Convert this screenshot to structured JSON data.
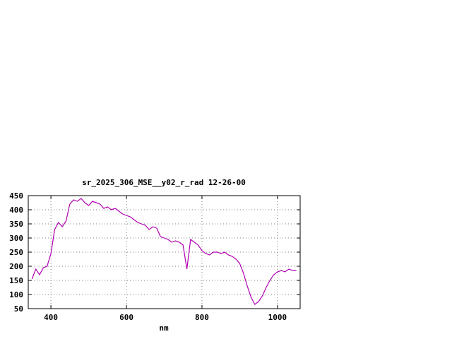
{
  "chart_data": {
    "type": "line",
    "title": "sr_2025_306_MSE__y02_r_rad 12-26-00",
    "xlabel": "nm",
    "ylabel": "",
    "xlim": [
      340,
      1060
    ],
    "ylim": [
      50,
      450
    ],
    "xticks": [
      400,
      600,
      800,
      1000
    ],
    "yticks": [
      50,
      100,
      150,
      200,
      250,
      300,
      350,
      400,
      450
    ],
    "grid": true,
    "legend": "none",
    "line_color": "#b000b0",
    "x": [
      350,
      360,
      370,
      380,
      390,
      400,
      410,
      420,
      430,
      440,
      450,
      460,
      470,
      480,
      490,
      500,
      510,
      520,
      530,
      540,
      550,
      560,
      570,
      580,
      590,
      600,
      610,
      620,
      630,
      640,
      650,
      660,
      670,
      680,
      690,
      700,
      710,
      720,
      730,
      740,
      750,
      760,
      770,
      780,
      790,
      800,
      810,
      820,
      830,
      840,
      850,
      860,
      870,
      880,
      890,
      900,
      910,
      920,
      930,
      940,
      950,
      960,
      970,
      980,
      990,
      1000,
      1010,
      1020,
      1030,
      1040,
      1050
    ],
    "values": [
      155,
      190,
      170,
      195,
      200,
      245,
      330,
      355,
      340,
      360,
      420,
      435,
      430,
      440,
      425,
      415,
      430,
      425,
      420,
      405,
      410,
      400,
      405,
      395,
      385,
      380,
      375,
      365,
      355,
      350,
      345,
      330,
      340,
      335,
      305,
      300,
      295,
      285,
      290,
      285,
      275,
      190,
      295,
      285,
      275,
      255,
      245,
      240,
      250,
      250,
      245,
      250,
      240,
      235,
      225,
      210,
      175,
      130,
      90,
      65,
      75,
      95,
      125,
      150,
      170,
      180,
      185,
      180,
      190,
      185,
      185
    ]
  }
}
